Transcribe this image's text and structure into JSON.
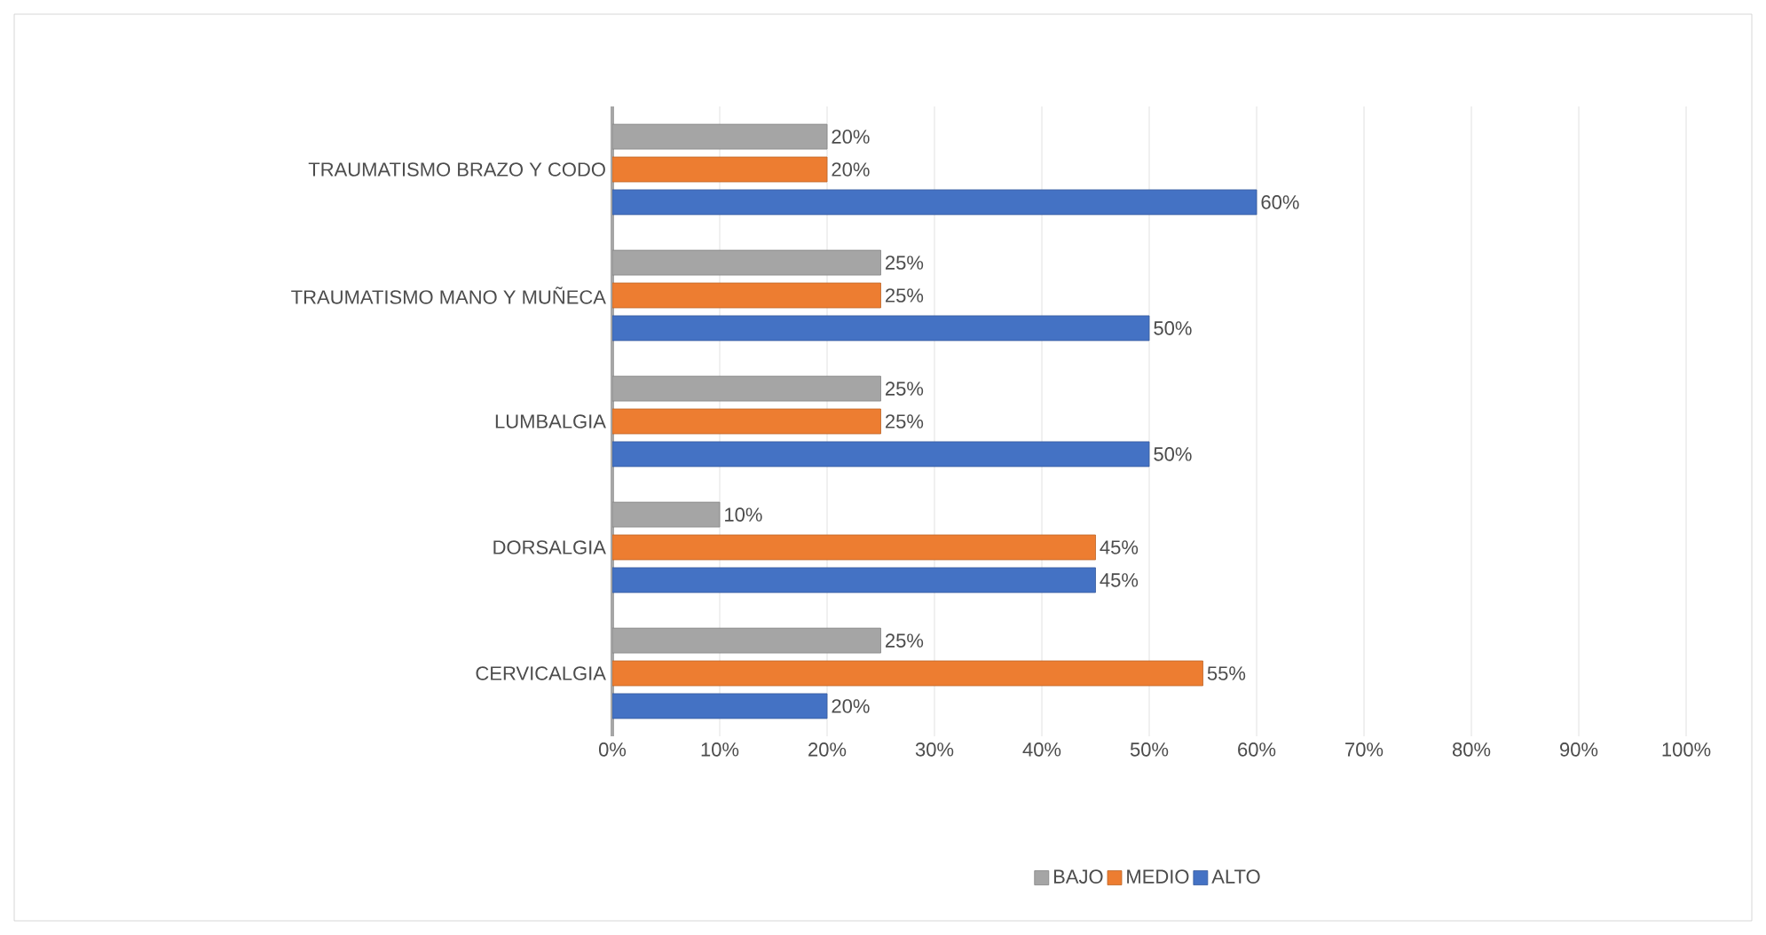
{
  "chart_data": {
    "type": "bar",
    "orientation": "horizontal",
    "categories": [
      "TRAUMATISMO BRAZO Y CODO",
      "TRAUMATISMO MANO Y MUÑECA",
      "LUMBALGIA",
      "DORSALGIA",
      "CERVICALGIA"
    ],
    "series": [
      {
        "name": "BAJO",
        "color": "#a5a5a5",
        "values": [
          20,
          25,
          25,
          10,
          25
        ],
        "value_labels": [
          "20%",
          "25%",
          "25%",
          "10%",
          "25%"
        ]
      },
      {
        "name": "MEDIO",
        "color": "#ed7d31",
        "values": [
          20,
          25,
          25,
          45,
          55
        ],
        "value_labels": [
          "20%",
          "25%",
          "25%",
          "45%",
          "55%"
        ]
      },
      {
        "name": "ALTO",
        "color": "#4472c4",
        "values": [
          60,
          50,
          50,
          45,
          20
        ],
        "value_labels": [
          "60%",
          "50%",
          "50%",
          "45%",
          "20%"
        ]
      }
    ],
    "xlim": [
      0,
      100
    ],
    "xticks": [
      {
        "value": 0,
        "label": "0%"
      },
      {
        "value": 10,
        "label": "10%"
      },
      {
        "value": 20,
        "label": "20%"
      },
      {
        "value": 30,
        "label": "30%"
      },
      {
        "value": 40,
        "label": "40%"
      },
      {
        "value": 50,
        "label": "50%"
      },
      {
        "value": 60,
        "label": "60%"
      },
      {
        "value": 70,
        "label": "70%"
      },
      {
        "value": 80,
        "label": "80%"
      },
      {
        "value": 90,
        "label": "90%"
      },
      {
        "value": 100,
        "label": "100%"
      }
    ],
    "grid": "x",
    "legend": "bottom"
  }
}
